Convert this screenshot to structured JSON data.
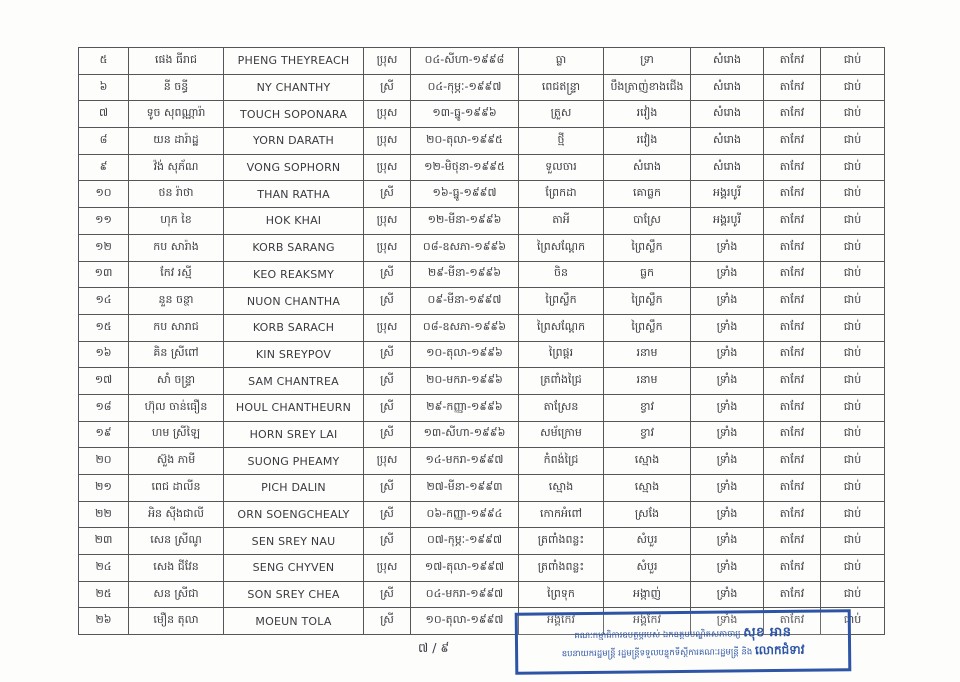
{
  "page": {
    "page_number_label": "៧ / ៩"
  },
  "colors": {
    "stamp_blue": "#2e55a5",
    "table_border": "#55555a",
    "text": "#3a3a40",
    "paper": "#fdfdfc"
  },
  "table": {
    "column_keys": [
      "no",
      "name_km",
      "name_en",
      "gender",
      "dob",
      "village",
      "commune",
      "district",
      "province",
      "result"
    ],
    "rows": [
      {
        "no": "៥",
        "name_km": "ផេង ធីរាជ",
        "name_en": "PHENG THEYREACH",
        "gender": "ប្រុស",
        "dob": "០៤-សីហា-១៩៩៨",
        "village": "ធ្លា",
        "commune": "ទ្រា",
        "district": "សំរោង",
        "province": "តាកែវ",
        "result": "ជាប់"
      },
      {
        "no": "៦",
        "name_km": "នី ចន្ធី",
        "name_en": "NY CHANTHY",
        "gender": "ស្រី",
        "dob": "០៤-កុម្ភៈ-១៩៩៧",
        "village": "ពេជឥន្រ្ទា",
        "commune": "បឹងត្រាញ់ខាងជើង",
        "district": "សំរោង",
        "province": "តាកែវ",
        "result": "ជាប់"
      },
      {
        "no": "៧",
        "name_km": "ទូច សុពណ្ណារ៉ា",
        "name_en": "TOUCH SOPONARA",
        "gender": "ប្រុស",
        "dob": "១៣-ធ្នូ-១៩៩៦",
        "village": "ត្រួស",
        "commune": "រវៀង",
        "district": "សំរោង",
        "province": "តាកែវ",
        "result": "ជាប់"
      },
      {
        "no": "៨",
        "name_km": "យន ដារ៉ាដ្ឋ",
        "name_en": "YORN DARATH",
        "gender": "ប្រុស",
        "dob": "២០-តុលា-១៩៩៥",
        "village": "ថ្មី",
        "commune": "រវៀង",
        "district": "សំរោង",
        "province": "តាកែវ",
        "result": "ជាប់"
      },
      {
        "no": "៩",
        "name_km": "វ៉ង់ សុភ័ណ",
        "name_en": "VONG SOPHORN",
        "gender": "ប្រុស",
        "dob": "១២-មិថុនា-១៩៩៥",
        "village": "ទួលចារ",
        "commune": "សំរោង",
        "district": "សំរោង",
        "province": "តាកែវ",
        "result": "ជាប់"
      },
      {
        "no": "១០",
        "name_km": "ថន រ៉ាថា",
        "name_en": "THAN RATHA",
        "gender": "ស្រី",
        "dob": "១៦-ធ្នូ-១៩៩៧",
        "village": "ព្រែកដា",
        "commune": "គោធ្លក",
        "district": "អង្គរបូរី",
        "province": "តាកែវ",
        "result": "ជាប់"
      },
      {
        "no": "១១",
        "name_km": "ហុក ខៃ",
        "name_en": "HOK KHAI",
        "gender": "ប្រុស",
        "dob": "១២-មីនា-១៩៩៦",
        "village": "តាអី",
        "commune": "បាស្រែ",
        "district": "អង្គរបូរី",
        "province": "តាកែវ",
        "result": "ជាប់"
      },
      {
        "no": "១២",
        "name_km": "កប សារ៉ាង",
        "name_en": "KORB SARANG",
        "gender": "ប្រុស",
        "dob": "០៨-ឧសភា-១៩៩៦",
        "village": "ព្រៃសណ្ដែក",
        "commune": "ព្រៃស្លឹក",
        "district": "ទ្រាំង",
        "province": "តាកែវ",
        "result": "ជាប់"
      },
      {
        "no": "១៣",
        "name_km": "កែវ រស្មី",
        "name_en": "KEO REAKSMY",
        "gender": "ស្រី",
        "dob": "២៩-មីនា-១៩៩៦",
        "village": "ចិន",
        "commune": "ធ្លក",
        "district": "ទ្រាំង",
        "province": "តាកែវ",
        "result": "ជាប់"
      },
      {
        "no": "១៤",
        "name_km": "នួន ចន្ថា",
        "name_en": "NUON CHANTHA",
        "gender": "ស្រី",
        "dob": "០៩-មីនា-១៩៩៧",
        "village": "ព្រៃស្លឹក",
        "commune": "ព្រៃស្លឹក",
        "district": "ទ្រាំង",
        "province": "តាកែវ",
        "result": "ជាប់"
      },
      {
        "no": "១៥",
        "name_km": "កប សារាជ",
        "name_en": "KORB SARACH",
        "gender": "ប្រុស",
        "dob": "០៨-ឧសភា-១៩៩៦",
        "village": "ព្រៃសណ្ដែក",
        "commune": "ព្រៃស្លឹក",
        "district": "ទ្រាំង",
        "province": "តាកែវ",
        "result": "ជាប់"
      },
      {
        "no": "១៦",
        "name_km": "គិន ស្រីពៅ",
        "name_en": "KIN SREYPOV",
        "gender": "ស្រី",
        "dob": "១០-តុលា-១៩៩៦",
        "village": "ព្រៃផ្ដរ",
        "commune": "រនាម",
        "district": "ទ្រាំង",
        "province": "តាកែវ",
        "result": "ជាប់"
      },
      {
        "no": "១៧",
        "name_km": "សាំ ចន្រ្ទា",
        "name_en": "SAM CHANTREA",
        "gender": "ស្រី",
        "dob": "២០-មករា-១៩៩៦",
        "village": "ត្រពាំងជ្រៃ",
        "commune": "រនាម",
        "district": "ទ្រាំង",
        "province": "តាកែវ",
        "result": "ជាប់"
      },
      {
        "no": "១៨",
        "name_km": "ហ៊ុល ចាន់ធឿន",
        "name_en": "HOUL CHANTHEURN",
        "gender": "ស្រី",
        "dob": "២៩-កញ្ញា-១៩៩៦",
        "village": "តាស្រែន",
        "commune": "ខ្វាវ",
        "district": "ទ្រាំង",
        "province": "តាកែវ",
        "result": "ជាប់"
      },
      {
        "no": "១៩",
        "name_km": "ហម ស្រីឡៃ",
        "name_en": "HORN SREY LAI",
        "gender": "ស្រី",
        "dob": "១៣-សីហា-១៩៩៦",
        "village": "សម័ក្រោម",
        "commune": "ខ្វាវ",
        "district": "ទ្រាំង",
        "province": "តាកែវ",
        "result": "ជាប់"
      },
      {
        "no": "២០",
        "name_km": "ស៊ួង ភាមី",
        "name_en": "SUONG PHEAMY",
        "gender": "ប្រុស",
        "dob": "១៤-មករា-១៩៩៧",
        "village": "កំពង់ជ្រៃ",
        "commune": "ស្មោង",
        "district": "ទ្រាំង",
        "province": "តាកែវ",
        "result": "ជាប់"
      },
      {
        "no": "២១",
        "name_km": "ពេជ ដាលីន",
        "name_en": "PICH DALIN",
        "gender": "ស្រី",
        "dob": "២៧-មីនា-១៩៩៣",
        "village": "ស្មោង",
        "commune": "ស្មោង",
        "district": "ទ្រាំង",
        "province": "តាកែវ",
        "result": "ជាប់"
      },
      {
        "no": "២២",
        "name_km": "អិន ស៊ីងជាលី",
        "name_en": "ORN SOENGCHEALY",
        "gender": "ស្រី",
        "dob": "០៦-កញ្ញា-១៩៩៤",
        "village": "កោកអំពៅ",
        "commune": "ស្រងែ",
        "district": "ទ្រាំង",
        "province": "តាកែវ",
        "result": "ជាប់"
      },
      {
        "no": "២៣",
        "name_km": "សេន ស្រីណូ",
        "name_en": "SEN SREY NAU",
        "gender": "ស្រី",
        "dob": "០៧-កុម្ភៈ-១៩៩៧",
        "village": "ត្រពាំងពន្លះ",
        "commune": "សំបួរ",
        "district": "ទ្រាំង",
        "province": "តាកែវ",
        "result": "ជាប់"
      },
      {
        "no": "២៤",
        "name_km": "សេង ជីវែន",
        "name_en": "SENG CHYVEN",
        "gender": "ប្រុស",
        "dob": "១៧-តុលា-១៩៩៧",
        "village": "ត្រពាំងពន្លះ",
        "commune": "សំបួរ",
        "district": "ទ្រាំង",
        "province": "តាកែវ",
        "result": "ជាប់"
      },
      {
        "no": "២៥",
        "name_km": "សន ស្រីជា",
        "name_en": "SON SREY CHEA",
        "gender": "ស្រី",
        "dob": "០៤-មករា-១៩៩៧",
        "village": "ព្រៃទុក",
        "commune": "អង្កាញ់",
        "district": "ទ្រាំង",
        "province": "តាកែវ",
        "result": "ជាប់"
      },
      {
        "no": "២៦",
        "name_km": "មឿន តុលា",
        "name_en": "MOEUN TOLA",
        "gender": "ស្រី",
        "dob": "១០-តុលា-១៩៩៧",
        "village": "អង្គកែវ",
        "commune": "អង្គកែវ",
        "district": "ទ្រាំង",
        "province": "តាកែវ",
        "result": "ជាប់"
      }
    ]
  },
  "stamp": {
    "line1_regular": "គណៈកម្មាធិការឧបត្ថម្ភរបស់ ឯកឧត្តមបណ្ឌិតសភាចារ្យ",
    "line1_bold": "សុខ អាន",
    "line2_regular": "ឧបនាយករដ្ឋមន្ត្រី រដ្ឋមន្ត្រីទទួលបន្ទុកទីស្តីការគណៈរដ្ឋមន្ត្រី និង",
    "line2_bold": "លោកជំទាវ"
  }
}
